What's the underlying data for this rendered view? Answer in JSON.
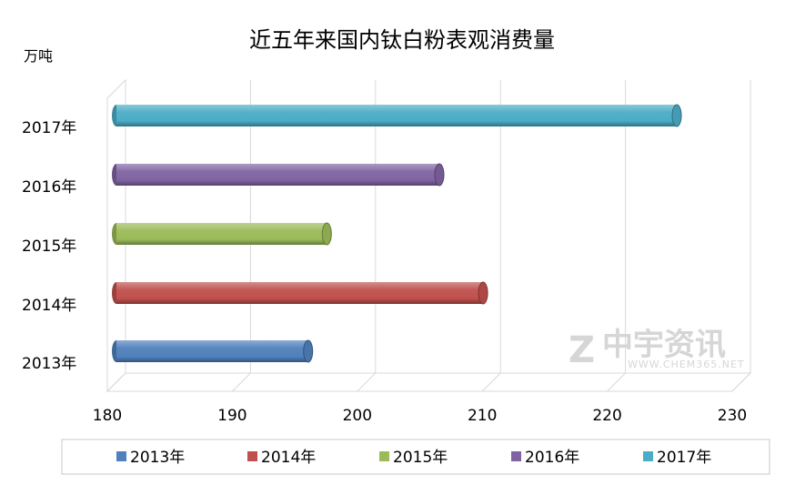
{
  "chart_data": {
    "type": "bar",
    "orientation": "horizontal",
    "title": "近五年来国内钛白粉表观消费量",
    "unit_label": "万吨",
    "categories": [
      "2013年",
      "2014年",
      "2015年",
      "2016年",
      "2017年"
    ],
    "values": [
      196.5,
      210.5,
      198,
      207,
      226
    ],
    "xlim": [
      180,
      230
    ],
    "xticks": [
      180,
      190,
      200,
      210,
      220,
      230
    ],
    "colors": [
      "#4f81bd",
      "#c0504d",
      "#9bbb59",
      "#8064a2",
      "#4bacc6"
    ],
    "legend": [
      "2013年",
      "2014年",
      "2015年",
      "2016年",
      "2017年"
    ],
    "legend_position": "bottom",
    "grid": true,
    "style": "3d-cylinder"
  },
  "watermark": {
    "logo_text": "中宇资讯",
    "url_text": "WWW.CHEM365.NET"
  }
}
